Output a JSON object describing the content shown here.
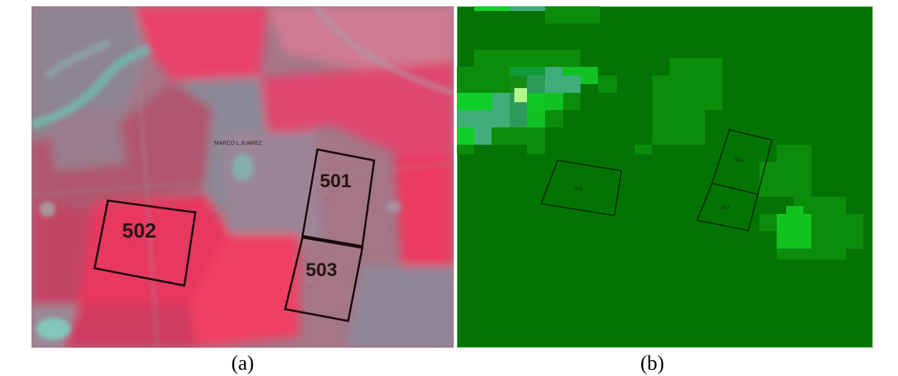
{
  "panel_a": {
    "caption": "(a)",
    "place_label": "MARCO L JUAREZ",
    "plots": [
      {
        "id": "501",
        "sublabel": "..."
      },
      {
        "id": "502",
        "sublabel": "..."
      },
      {
        "id": "503",
        "sublabel": "..."
      }
    ],
    "colors": {
      "field_red": "#ef2f5a",
      "bare_soil": "#8c8696",
      "water": "#6fbfb0"
    }
  },
  "panel_b": {
    "caption": "(b)",
    "plots": [
      {
        "id": "501"
      },
      {
        "id": "502"
      },
      {
        "id": "503"
      }
    ],
    "colors": {
      "background": "#037303",
      "mid_green": "#168c16",
      "bright_green": "#0fd02a",
      "teal": "#3fae7a"
    }
  }
}
